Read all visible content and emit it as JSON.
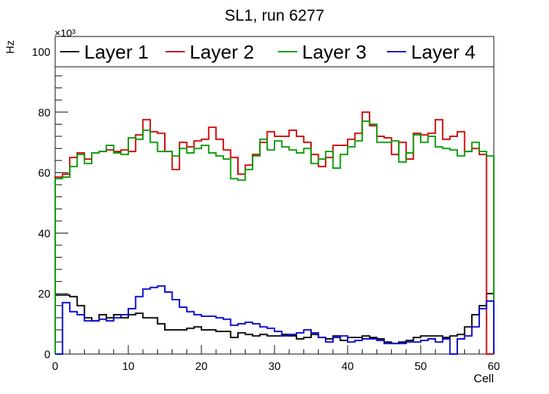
{
  "chart_data": {
    "type": "line",
    "title": "SL1, run 6277",
    "xlabel": "Cell",
    "ylabel": "Hz",
    "y_multiplier": "×10³",
    "xlim": [
      0,
      60
    ],
    "ylim": [
      0,
      105
    ],
    "x_ticks": [
      "0",
      "10",
      "20",
      "30",
      "40",
      "50",
      "60"
    ],
    "y_ticks": [
      "0",
      "20",
      "40",
      "60",
      "80",
      "100"
    ],
    "legend_position": "top",
    "grid": false,
    "step_histogram": true,
    "bin_edges_start": 0,
    "bin_width": 1,
    "series": [
      {
        "name": "Layer 1",
        "color": "#000000",
        "values": [
          19.5,
          19.5,
          19.0,
          16.0,
          12.0,
          11.0,
          13.0,
          12.0,
          13.0,
          12.0,
          13.0,
          13.5,
          12.0,
          12.0,
          10.0,
          8.0,
          8.0,
          8.0,
          8.5,
          9.0,
          8.0,
          8.0,
          7.5,
          7.5,
          5.5,
          7.0,
          6.5,
          6.0,
          6.5,
          6.0,
          6.0,
          6.5,
          6.0,
          5.0,
          5.5,
          6.5,
          5.5,
          5.0,
          6.0,
          4.5,
          5.5,
          5.5,
          6.0,
          5.5,
          5.0,
          4.0,
          3.5,
          4.0,
          4.5,
          5.5,
          6.0,
          6.0,
          6.0,
          5.5,
          6.0,
          6.5,
          9.0,
          13.0,
          16.0,
          20.0
        ]
      },
      {
        "name": "Layer 2",
        "color": "#cc0000",
        "values": [
          58.5,
          59.5,
          65.0,
          66.5,
          64.5,
          66.5,
          67.0,
          67.5,
          67.0,
          67.5,
          67.0,
          72.5,
          77.5,
          73.5,
          73.0,
          67.0,
          61.0,
          70.0,
          68.5,
          70.5,
          71.0,
          75.0,
          71.0,
          67.5,
          65.0,
          59.5,
          62.5,
          66.0,
          70.0,
          73.5,
          72.0,
          72.0,
          74.0,
          72.0,
          70.0,
          66.0,
          62.0,
          65.0,
          69.0,
          69.0,
          71.0,
          73.0,
          80.0,
          75.5,
          72.0,
          71.5,
          66.0,
          70.0,
          64.5,
          73.0,
          72.5,
          73.0,
          77.5,
          71.0,
          72.0,
          73.5,
          67.0,
          68.0,
          66.0,
          0
        ]
      },
      {
        "name": "Layer 3",
        "color": "#009900",
        "values": [
          58.0,
          58.5,
          62.0,
          66.0,
          63.0,
          66.5,
          67.0,
          69.0,
          66.5,
          66.0,
          71.5,
          71.0,
          74.0,
          70.0,
          67.0,
          67.0,
          65.5,
          68.0,
          66.5,
          68.0,
          69.0,
          66.5,
          65.5,
          64.5,
          58.0,
          57.5,
          61.0,
          65.5,
          71.0,
          67.5,
          70.5,
          68.5,
          67.5,
          66.5,
          68.0,
          63.0,
          64.5,
          67.0,
          61.5,
          66.0,
          68.5,
          70.5,
          77.0,
          76.0,
          70.0,
          70.0,
          70.5,
          63.5,
          66.5,
          72.5,
          70.0,
          72.0,
          68.5,
          68.0,
          67.5,
          65.5,
          67.0,
          70.0,
          67.0,
          65.5
        ]
      },
      {
        "name": "Layer 4",
        "color": "#0000cc",
        "values": [
          0,
          17.0,
          14.0,
          13.0,
          11.0,
          11.0,
          11.5,
          11.0,
          12.0,
          13.0,
          15.0,
          19.0,
          21.5,
          22.0,
          22.5,
          20.5,
          18.0,
          15.5,
          14.0,
          13.0,
          12.5,
          12.5,
          12.0,
          11.5,
          9.5,
          10.0,
          10.5,
          10.0,
          9.0,
          8.5,
          7.5,
          6.0,
          6.5,
          7.0,
          8.0,
          7.0,
          5.5,
          4.0,
          5.5,
          6.0,
          4.0,
          4.5,
          5.0,
          5.0,
          4.5,
          3.5,
          3.5,
          3.5,
          4.0,
          4.0,
          4.5,
          5.0,
          4.0,
          5.0,
          0,
          5.0,
          6.0,
          9.0,
          15.0,
          17.5
        ]
      }
    ]
  }
}
